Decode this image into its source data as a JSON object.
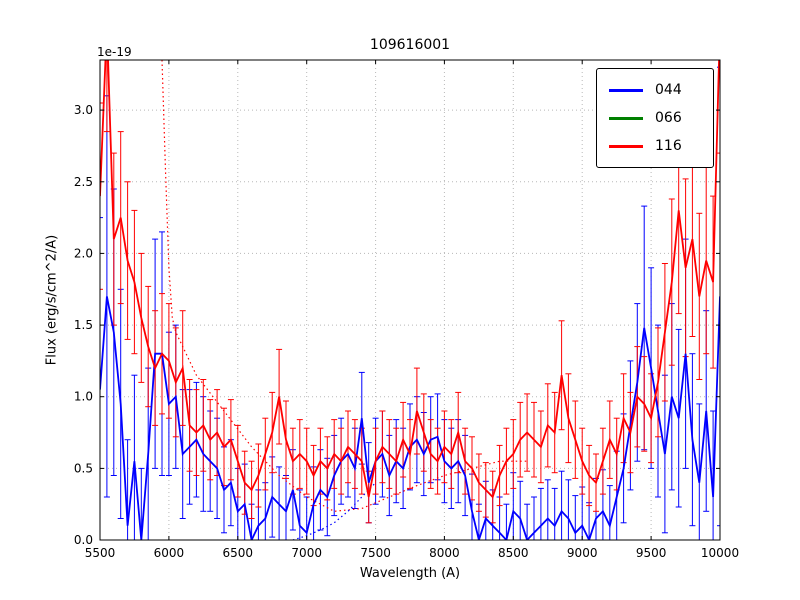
{
  "title": "109616001",
  "offset_label": "1e-19",
  "xlabel": "Wavelength (A)",
  "ylabel": "Flux (erg/s/cm^2/A)",
  "chart_data": {
    "type": "line",
    "title": "109616001",
    "xlabel": "Wavelength (A)",
    "ylabel": "Flux (erg/s/cm^2/A)",
    "y_offset_factor": "1e-19",
    "xlim": [
      5500,
      10000
    ],
    "ylim": [
      0,
      3.35
    ],
    "grid": true,
    "legend_position": "upper right",
    "xticks": [
      5500,
      6000,
      6500,
      7000,
      7500,
      8000,
      8500,
      9000,
      9500,
      10000
    ],
    "xtick_labels": [
      "5500",
      "6000",
      "6500",
      "7000",
      "7500",
      "8000",
      "8500",
      "9000",
      "9500",
      "10000"
    ],
    "yticks": [
      0.0,
      0.5,
      1.0,
      1.5,
      2.0,
      2.5,
      3.0
    ],
    "ytick_labels": [
      "0.0",
      "0.5",
      "1.0",
      "1.5",
      "2.0",
      "2.5",
      "3.0"
    ],
    "x": [
      5500,
      5550,
      5600,
      5650,
      5700,
      5750,
      5800,
      5850,
      5900,
      5950,
      6000,
      6050,
      6100,
      6150,
      6200,
      6250,
      6300,
      6350,
      6400,
      6450,
      6500,
      6550,
      6600,
      6650,
      6700,
      6750,
      6800,
      6850,
      6900,
      6950,
      7000,
      7050,
      7100,
      7150,
      7200,
      7250,
      7300,
      7350,
      7400,
      7450,
      7500,
      7550,
      7600,
      7650,
      7700,
      7750,
      7800,
      7850,
      7900,
      7950,
      8000,
      8050,
      8100,
      8150,
      8200,
      8250,
      8300,
      8350,
      8400,
      8450,
      8500,
      8550,
      8600,
      8650,
      8700,
      8750,
      8800,
      8850,
      8900,
      8950,
      9000,
      9050,
      9100,
      9150,
      9200,
      9250,
      9300,
      9350,
      9400,
      9450,
      9500,
      9550,
      9600,
      9650,
      9700,
      9750,
      9800,
      9850,
      9900,
      9950,
      10000
    ],
    "series": [
      {
        "name": "044",
        "color": "#0000ff",
        "values": [
          1.05,
          1.7,
          1.45,
          0.95,
          0.1,
          0.55,
          0.0,
          0.6,
          1.3,
          1.3,
          0.95,
          1.0,
          0.6,
          0.65,
          0.7,
          0.6,
          0.55,
          0.5,
          0.35,
          0.4,
          0.2,
          0.25,
          0.0,
          0.1,
          0.15,
          0.3,
          0.25,
          0.2,
          0.35,
          0.1,
          0.05,
          0.25,
          0.35,
          0.3,
          0.45,
          0.55,
          0.6,
          0.5,
          0.85,
          0.4,
          0.55,
          0.6,
          0.45,
          0.55,
          0.5,
          0.65,
          0.7,
          0.6,
          0.7,
          0.72,
          0.55,
          0.5,
          0.55,
          0.45,
          0.2,
          0.0,
          0.15,
          0.1,
          0.05,
          0.0,
          0.2,
          0.15,
          0.0,
          0.05,
          0.1,
          0.15,
          0.1,
          0.2,
          0.15,
          0.05,
          0.1,
          0.0,
          0.15,
          0.2,
          0.1,
          0.3,
          0.5,
          0.8,
          1.1,
          1.48,
          1.2,
          0.9,
          0.6,
          1.0,
          0.85,
          1.3,
          0.7,
          0.4,
          0.9,
          0.3,
          1.7
        ],
        "errors": [
          1.2,
          1.4,
          1.0,
          0.8,
          0.6,
          0.6,
          0.5,
          0.6,
          0.8,
          0.85,
          0.5,
          0.5,
          0.45,
          0.4,
          0.4,
          0.4,
          0.35,
          0.35,
          0.3,
          0.3,
          0.3,
          0.28,
          0.25,
          0.25,
          0.25,
          0.28,
          0.26,
          0.25,
          0.28,
          0.25,
          0.25,
          0.26,
          0.28,
          0.27,
          0.28,
          0.3,
          0.3,
          0.28,
          0.32,
          0.28,
          0.3,
          0.3,
          0.28,
          0.29,
          0.28,
          0.3,
          0.3,
          0.29,
          0.3,
          0.3,
          0.29,
          0.28,
          0.29,
          0.28,
          0.26,
          0.25,
          0.26,
          0.25,
          0.25,
          0.25,
          0.27,
          0.26,
          0.25,
          0.25,
          0.26,
          0.27,
          0.26,
          0.28,
          0.27,
          0.26,
          0.27,
          0.26,
          0.28,
          0.29,
          0.28,
          0.32,
          0.38,
          0.45,
          0.55,
          0.85,
          0.7,
          0.6,
          0.55,
          0.65,
          0.62,
          0.8,
          0.6,
          0.55,
          0.7,
          0.6,
          1.6
        ]
      },
      {
        "name": "066",
        "color": "#008000",
        "values": [],
        "errors": []
      },
      {
        "name": "116",
        "color": "#ff0000",
        "values": [
          2.4,
          3.6,
          2.1,
          2.25,
          1.95,
          1.8,
          1.55,
          1.35,
          1.2,
          1.3,
          1.25,
          1.1,
          1.2,
          0.8,
          0.75,
          0.8,
          0.7,
          0.75,
          0.65,
          0.7,
          0.55,
          0.4,
          0.35,
          0.45,
          0.6,
          0.75,
          1.0,
          0.7,
          0.55,
          0.6,
          0.55,
          0.45,
          0.55,
          0.5,
          0.6,
          0.55,
          0.65,
          0.6,
          0.55,
          0.3,
          0.55,
          0.65,
          0.6,
          0.55,
          0.7,
          0.6,
          0.9,
          0.75,
          0.6,
          0.55,
          0.65,
          0.6,
          0.75,
          0.55,
          0.5,
          0.4,
          0.35,
          0.3,
          0.45,
          0.55,
          0.6,
          0.7,
          0.75,
          0.7,
          0.65,
          0.8,
          0.75,
          1.15,
          0.85,
          0.7,
          0.55,
          0.45,
          0.4,
          0.55,
          0.7,
          0.6,
          0.85,
          0.75,
          1.0,
          0.95,
          0.85,
          1.1,
          1.45,
          1.8,
          2.3,
          1.9,
          2.1,
          1.7,
          1.95,
          1.8,
          3.6
        ],
        "errors": [
          0.65,
          0.75,
          0.6,
          0.6,
          0.55,
          0.5,
          0.45,
          0.42,
          0.4,
          0.42,
          0.4,
          0.38,
          0.4,
          0.32,
          0.3,
          0.32,
          0.28,
          0.3,
          0.27,
          0.28,
          0.25,
          0.22,
          0.2,
          0.22,
          0.25,
          0.28,
          0.33,
          0.27,
          0.23,
          0.24,
          0.23,
          0.21,
          0.23,
          0.22,
          0.24,
          0.23,
          0.25,
          0.24,
          0.23,
          0.18,
          0.23,
          0.25,
          0.24,
          0.23,
          0.26,
          0.24,
          0.3,
          0.27,
          0.24,
          0.23,
          0.25,
          0.24,
          0.28,
          0.23,
          0.22,
          0.2,
          0.19,
          0.18,
          0.21,
          0.23,
          0.24,
          0.26,
          0.27,
          0.26,
          0.25,
          0.29,
          0.28,
          0.38,
          0.31,
          0.27,
          0.23,
          0.21,
          0.2,
          0.23,
          0.27,
          0.25,
          0.31,
          0.28,
          0.35,
          0.33,
          0.31,
          0.38,
          0.48,
          0.58,
          0.72,
          0.62,
          0.68,
          0.58,
          0.65,
          0.6,
          0.9
        ]
      }
    ],
    "dotted_series": [
      {
        "name": "116-dotted",
        "color": "#ff0000",
        "x": [
          5950,
          5975,
          6000,
          6025,
          6050,
          6100,
          6200,
          6400,
          6600,
          6800,
          7000,
          7200,
          7400,
          7600,
          7800,
          8000,
          8200,
          8400,
          8600
        ],
        "y": [
          3.35,
          2.6,
          1.9,
          1.55,
          1.45,
          1.35,
          1.15,
          0.9,
          0.65,
          0.45,
          0.3,
          0.2,
          0.22,
          0.3,
          0.38,
          0.45,
          0.5,
          0.55,
          0.55
        ]
      },
      {
        "name": "044-dotted",
        "color": "#0000ff",
        "x": [
          6900,
          7000,
          7100,
          7200,
          7300,
          7400,
          7500
        ],
        "y": [
          0.0,
          0.03,
          0.07,
          0.12,
          0.2,
          0.3,
          0.4
        ]
      }
    ]
  }
}
